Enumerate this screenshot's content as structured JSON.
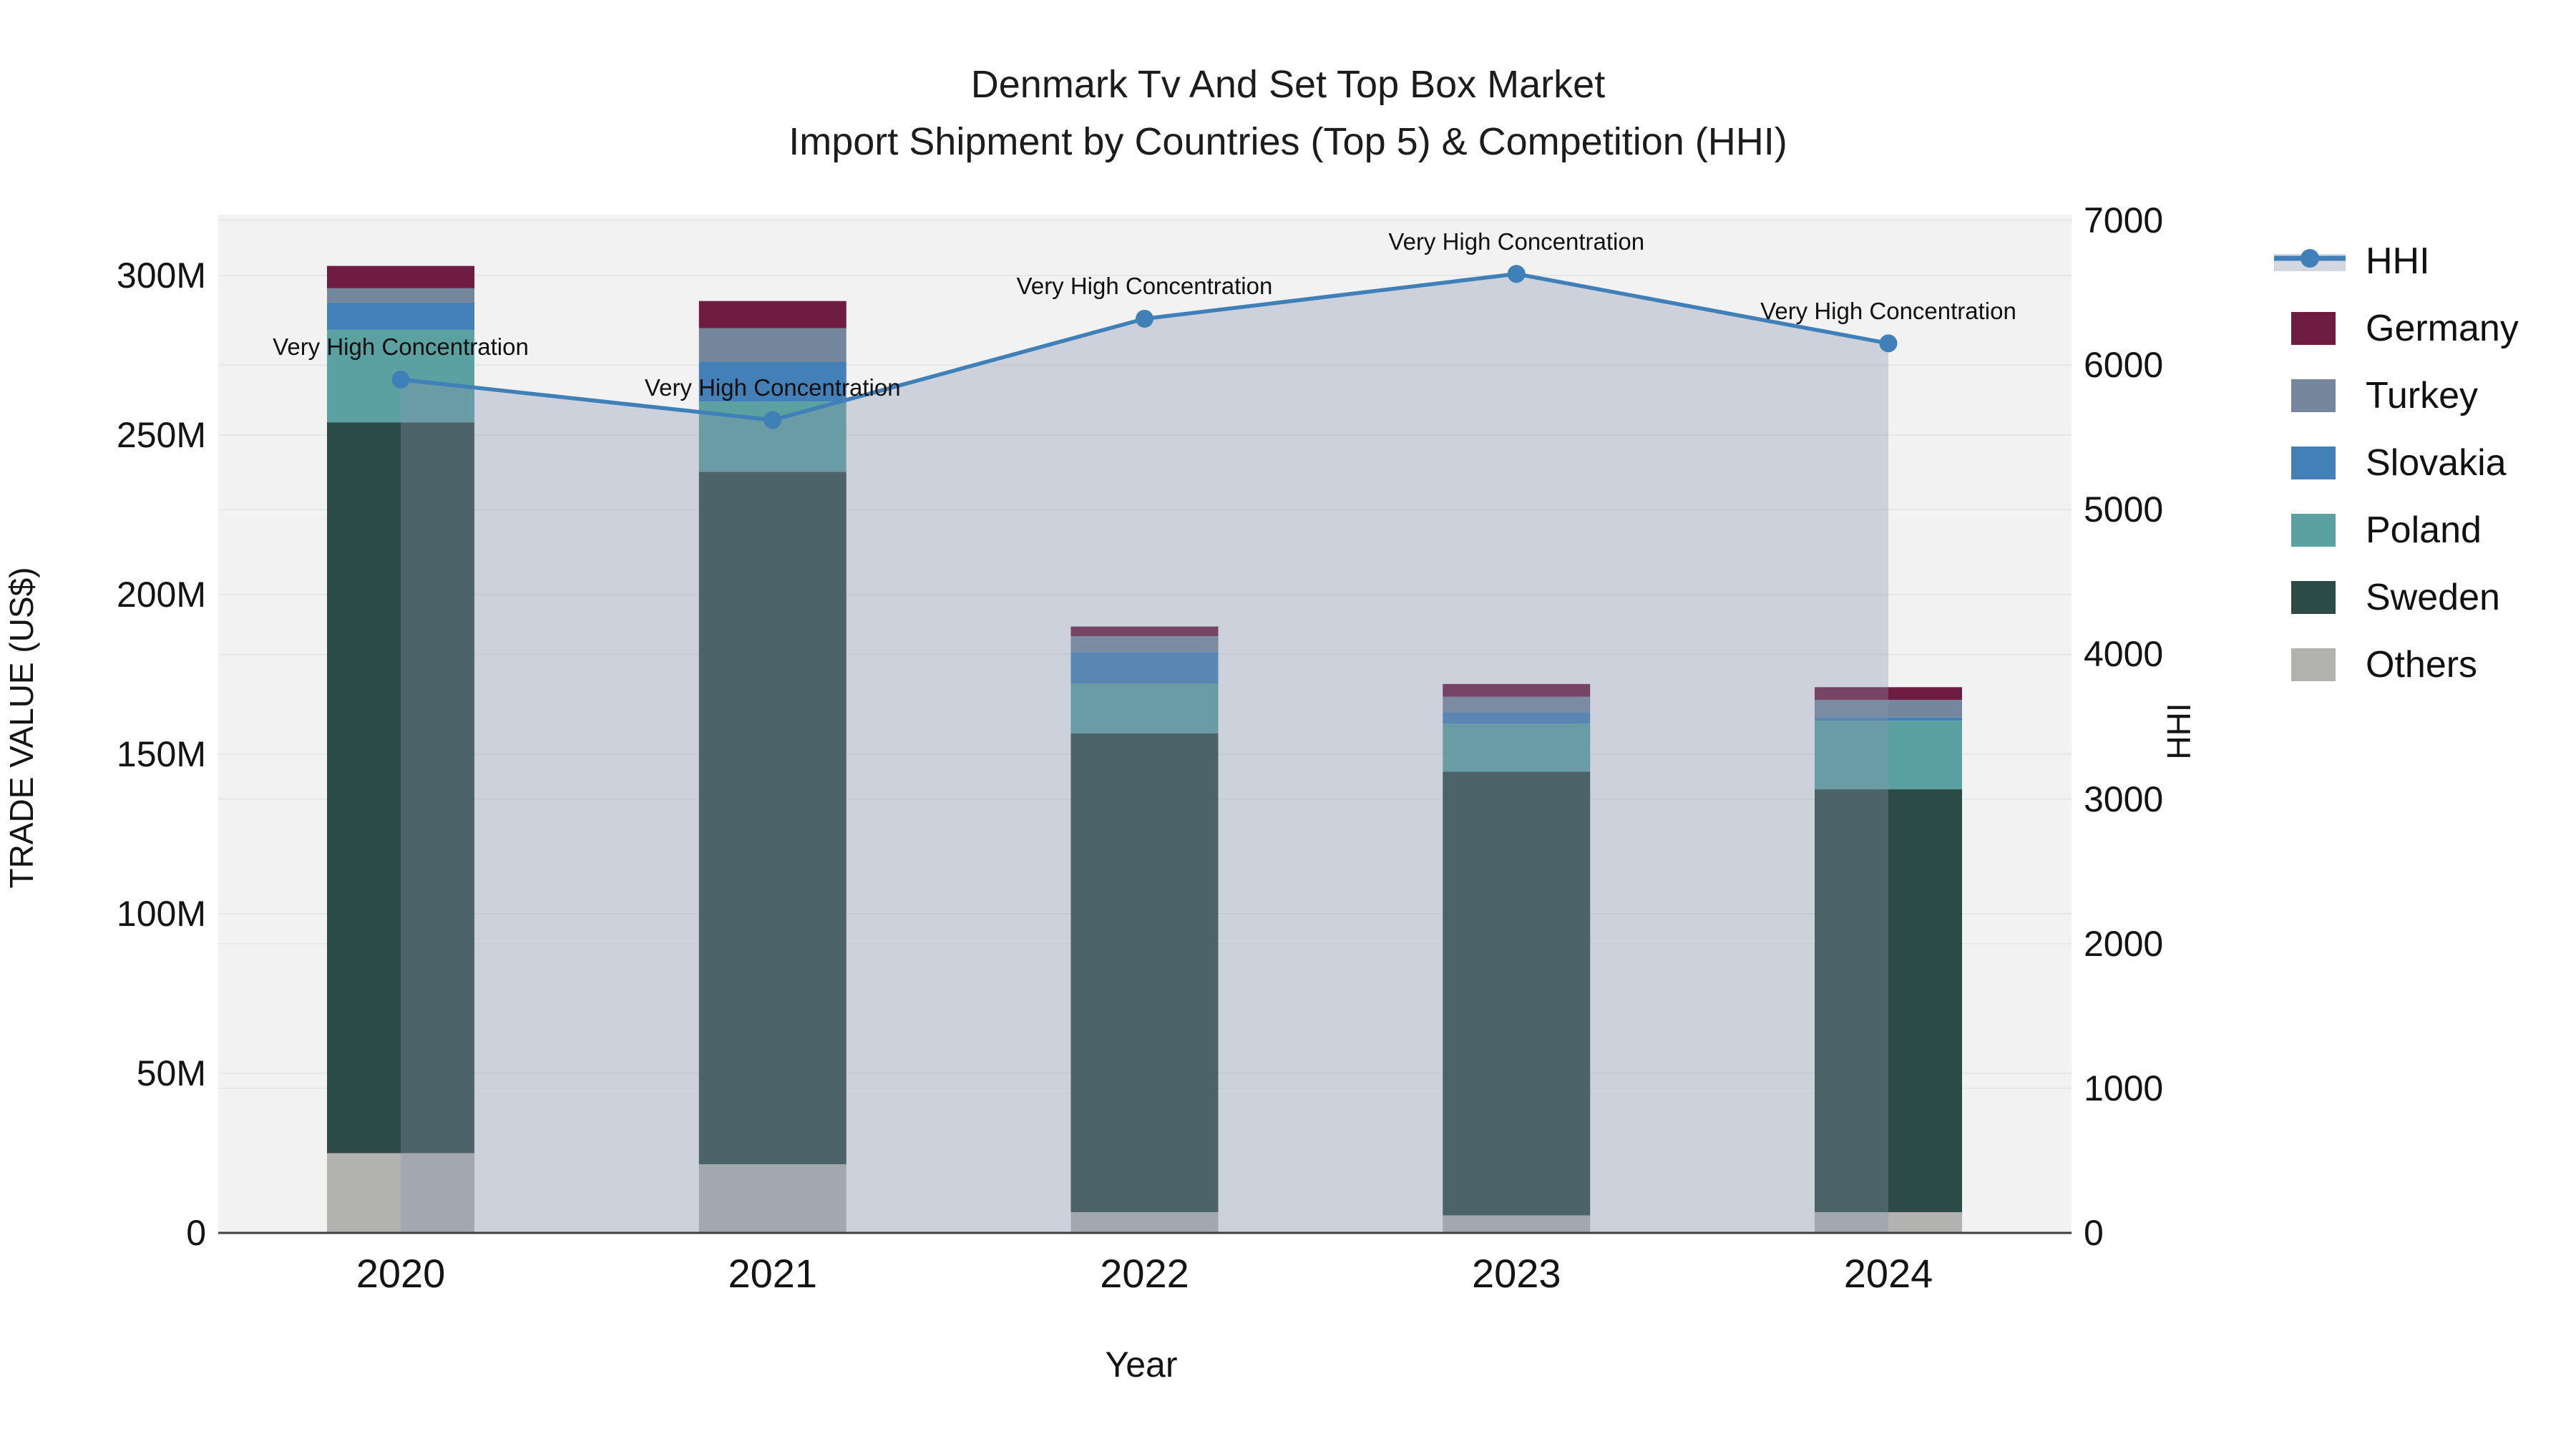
{
  "title": {
    "line1": "Denmark Tv And Set Top Box Market",
    "line2": "Import Shipment by Countries (Top 5) & Competition (HHI)"
  },
  "axes": {
    "left": {
      "title": "TRADE VALUE (US$)",
      "ticks": [
        "0",
        "50M",
        "100M",
        "150M",
        "200M",
        "250M",
        "300M"
      ],
      "tick_values": [
        0,
        50,
        100,
        150,
        200,
        250,
        300
      ]
    },
    "right": {
      "title": "HHI",
      "ticks": [
        "0",
        "1000",
        "2000",
        "3000",
        "4000",
        "5000",
        "6000",
        "7000"
      ],
      "tick_values": [
        0,
        1000,
        2000,
        3000,
        4000,
        5000,
        6000,
        7000
      ]
    },
    "x": {
      "title": "Year"
    }
  },
  "legend": {
    "items": [
      {
        "label": "HHI",
        "type": "line",
        "color": "#4080b8"
      },
      {
        "label": "Germany",
        "type": "swatch",
        "color": "#6e1c40"
      },
      {
        "label": "Turkey",
        "type": "swatch",
        "color": "#75879c"
      },
      {
        "label": "Slovakia",
        "type": "swatch",
        "color": "#4480b8"
      },
      {
        "label": "Poland",
        "type": "swatch",
        "color": "#5ba1a1"
      },
      {
        "label": "Sweden",
        "type": "swatch",
        "color": "#2c4b46"
      },
      {
        "label": "Others",
        "type": "swatch",
        "color": "#b2b2b1"
      }
    ]
  },
  "chart_data": {
    "type": "bar",
    "subtype": "stacked-bars-with-line",
    "categories": [
      "2020",
      "2021",
      "2022",
      "2023",
      "2024"
    ],
    "value_unit": "US$ millions",
    "series": [
      {
        "name": "Others",
        "color": "#b2b2b1",
        "values": [
          25,
          21.5,
          6.5,
          5.5,
          6.5
        ]
      },
      {
        "name": "Sweden",
        "color": "#2c4b46",
        "values": [
          229,
          217,
          150,
          139,
          132.5
        ]
      },
      {
        "name": "Poland",
        "color": "#5ba1a1",
        "values": [
          29,
          22,
          15.5,
          15,
          21.5
        ]
      },
      {
        "name": "Slovakia",
        "color": "#4480b8",
        "values": [
          8.5,
          12.5,
          10,
          3.5,
          1
        ]
      },
      {
        "name": "Turkey",
        "color": "#75879c",
        "values": [
          4.5,
          10.5,
          5,
          5,
          5.5
        ]
      },
      {
        "name": "Germany",
        "color": "#6e1c40",
        "values": [
          7,
          8.5,
          3,
          4,
          4
        ]
      }
    ],
    "line": {
      "name": "HHI",
      "color": "#4080b8",
      "area_fill": "rgba(136,148,172,0.34)",
      "values": [
        5900,
        5620,
        6320,
        6630,
        6150
      ],
      "point_annotation": "Very High Concentration"
    },
    "title": "Denmark Tv And Set Top Box Market — Import Shipment by Countries (Top 5) & Competition (HHI)",
    "xlabel": "Year",
    "ylabel_left": "TRADE VALUE (US$)",
    "ylabel_right": "HHI",
    "ylim_left": [
      0,
      300
    ],
    "ylim_right": [
      0,
      7000
    ],
    "grid": true,
    "legend_position": "right",
    "plot_background": "#f2f2f3",
    "grid_color": "#e5e7e9",
    "axisline_color": "#3f3f3f"
  }
}
